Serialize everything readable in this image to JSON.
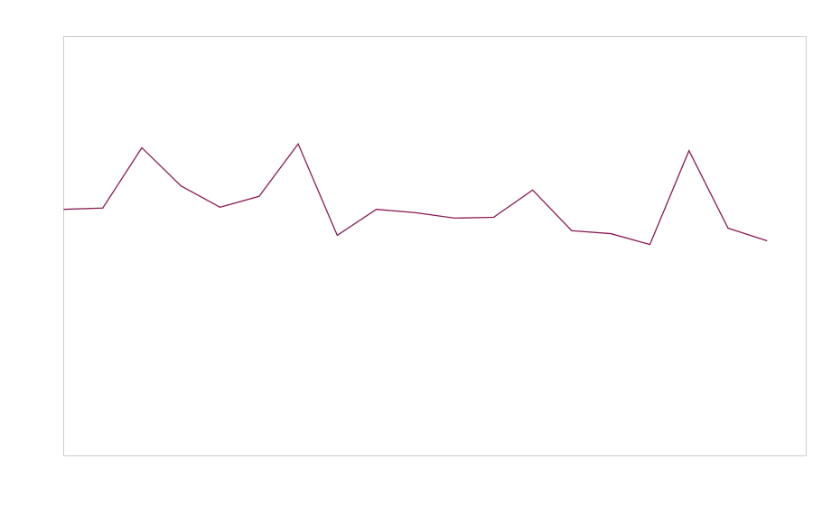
{
  "chart_data": {
    "type": "line",
    "x": [
      0,
      1,
      2,
      3,
      4,
      5,
      6,
      7,
      8,
      9,
      10,
      11,
      12,
      13,
      14,
      15,
      16,
      17,
      18
    ],
    "xlim": [
      0,
      19
    ],
    "ylim": [
      0,
      100
    ],
    "series": [
      {
        "color": "#8a1a55",
        "values": [
          58.8,
          59.1,
          73.5,
          64.4,
          59.3,
          61.9,
          74.4,
          52.6,
          58.8,
          58.0,
          56.7,
          56.9,
          63.4,
          53.7,
          53.0,
          50.4,
          72.8,
          54.3,
          51.3
        ]
      }
    ]
  }
}
